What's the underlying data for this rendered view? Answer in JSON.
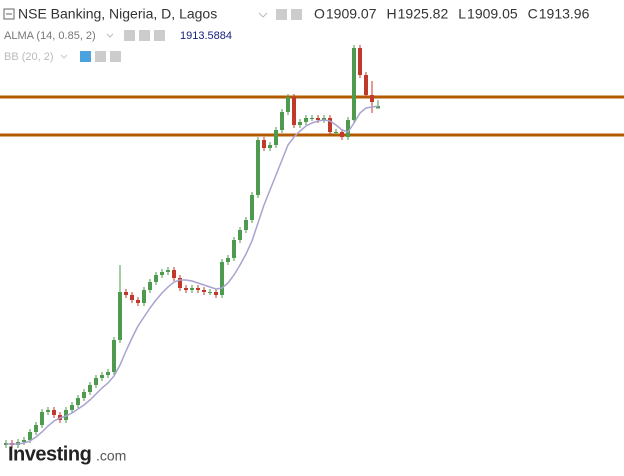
{
  "chart_data": {
    "type": "candlestick",
    "title": "NSE Banking, Nigeria, D, Lagos",
    "ohlc_labels": [
      "O",
      "H",
      "L",
      "C"
    ],
    "ylim": [
      1174,
      2126
    ],
    "up_color": "#4e9a4e",
    "down_color": "#c0392b",
    "hlines": [
      1932,
      1856
    ],
    "hline_color": "#b35a00",
    "series": [
      {
        "name": "NSE Banking",
        "open": [
          1236,
          1240,
          1236,
          1242,
          1246,
          1262,
          1276,
          1302,
          1306,
          1296,
          1286,
          1306,
          1316,
          1330,
          1342,
          1356,
          1370,
          1376,
          1382,
          1446,
          1542,
          1536,
          1526,
          1520,
          1546,
          1562,
          1576,
          1582,
          1586,
          1570,
          1550,
          1546,
          1550,
          1546,
          1542,
          1542,
          1536,
          1602,
          1610,
          1646,
          1666,
          1686,
          1736,
          1846,
          1830,
          1836,
          1866,
          1902,
          1932,
          1876,
          1882,
          1890,
          1890,
          1886,
          1890,
          1862,
          1862,
          1852,
          1886,
          2030,
          1976,
          1936,
          1909.07
        ],
        "high": [
          1246,
          1246,
          1248,
          1252,
          1268,
          1282,
          1308,
          1312,
          1312,
          1302,
          1312,
          1322,
          1336,
          1348,
          1362,
          1376,
          1382,
          1388,
          1452,
          1596,
          1548,
          1542,
          1532,
          1552,
          1568,
          1582,
          1588,
          1592,
          1592,
          1576,
          1556,
          1556,
          1556,
          1552,
          1548,
          1548,
          1608,
          1616,
          1652,
          1672,
          1692,
          1742,
          1852,
          1852,
          1842,
          1872,
          1908,
          1938,
          1938,
          1888,
          1896,
          1896,
          1896,
          1896,
          1896,
          1868,
          1868,
          1892,
          2036,
          2036,
          1982,
          1964,
          1925.82
        ],
        "low": [
          1230,
          1230,
          1230,
          1236,
          1240,
          1256,
          1270,
          1296,
          1290,
          1280,
          1280,
          1300,
          1310,
          1324,
          1336,
          1350,
          1364,
          1370,
          1376,
          1440,
          1530,
          1520,
          1514,
          1514,
          1540,
          1556,
          1570,
          1576,
          1564,
          1544,
          1540,
          1540,
          1540,
          1536,
          1536,
          1530,
          1530,
          1596,
          1604,
          1640,
          1660,
          1680,
          1730,
          1824,
          1824,
          1830,
          1860,
          1896,
          1870,
          1870,
          1876,
          1884,
          1880,
          1880,
          1856,
          1856,
          1846,
          1846,
          1880,
          1970,
          1930,
          1900,
          1909.05
        ],
        "close": [
          1240,
          1236,
          1242,
          1246,
          1262,
          1276,
          1302,
          1306,
          1296,
          1286,
          1306,
          1316,
          1330,
          1342,
          1356,
          1370,
          1376,
          1382,
          1446,
          1542,
          1536,
          1526,
          1520,
          1546,
          1562,
          1576,
          1582,
          1586,
          1570,
          1550,
          1546,
          1550,
          1546,
          1542,
          1542,
          1536,
          1602,
          1610,
          1646,
          1666,
          1686,
          1736,
          1846,
          1830,
          1836,
          1866,
          1902,
          1932,
          1876,
          1882,
          1890,
          1890,
          1886,
          1890,
          1862,
          1862,
          1852,
          1886,
          2030,
          1976,
          1936,
          1922,
          1913.96
        ]
      },
      {
        "name": "ALMA (14, 0.85, 2)",
        "color": "#a9a3d0",
        "values": [
          1238,
          1238,
          1238,
          1240,
          1244,
          1252,
          1262,
          1274,
          1284,
          1290,
          1294,
          1300,
          1308,
          1316,
          1326,
          1338,
          1350,
          1360,
          1374,
          1396,
          1424,
          1450,
          1474,
          1492,
          1510,
          1526,
          1540,
          1552,
          1562,
          1566,
          1566,
          1564,
          1560,
          1556,
          1552,
          1548,
          1550,
          1560,
          1576,
          1596,
          1618,
          1644,
          1680,
          1716,
          1746,
          1776,
          1806,
          1836,
          1852,
          1864,
          1874,
          1880,
          1884,
          1886,
          1884,
          1876,
          1866,
          1862,
          1880,
          1900,
          1910,
          1912,
          1913.5884
        ]
      }
    ],
    "bb_label": "BB (20, 2)",
    "logo": {
      "brand": "Investing",
      "suffix": ".com"
    }
  }
}
